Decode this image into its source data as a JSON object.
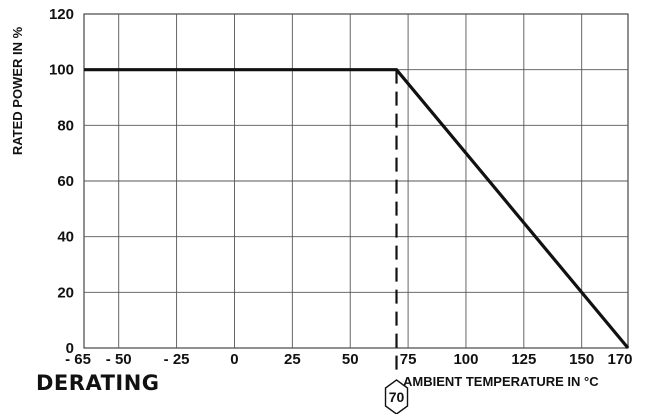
{
  "chart_data": {
    "type": "line",
    "title": "DERATING",
    "xlabel": "AMBIENT TEMPERATURE IN °C",
    "ylabel": "RATED POWER IN %",
    "xlim": [
      -65,
      170
    ],
    "ylim": [
      0,
      120
    ],
    "x_ticks": [
      {
        "value": -65,
        "label": "- 65"
      },
      {
        "value": -50,
        "label": "- 50"
      },
      {
        "value": -25,
        "label": "- 25"
      },
      {
        "value": 0,
        "label": "0"
      },
      {
        "value": 25,
        "label": "25"
      },
      {
        "value": 50,
        "label": "50"
      },
      {
        "value": 75,
        "label": "75"
      },
      {
        "value": 100,
        "label": "100"
      },
      {
        "value": 125,
        "label": "125"
      },
      {
        "value": 150,
        "label": "150"
      },
      {
        "value": 170,
        "label": "170"
      }
    ],
    "y_ticks": [
      0,
      20,
      40,
      60,
      80,
      100,
      120
    ],
    "grid": true,
    "series": [
      {
        "x": [
          -65,
          70,
          170
        ],
        "y": [
          100,
          100,
          0
        ]
      }
    ],
    "annotations": [
      {
        "x": 70,
        "label": "70",
        "style": "dashed-vertical"
      }
    ]
  }
}
